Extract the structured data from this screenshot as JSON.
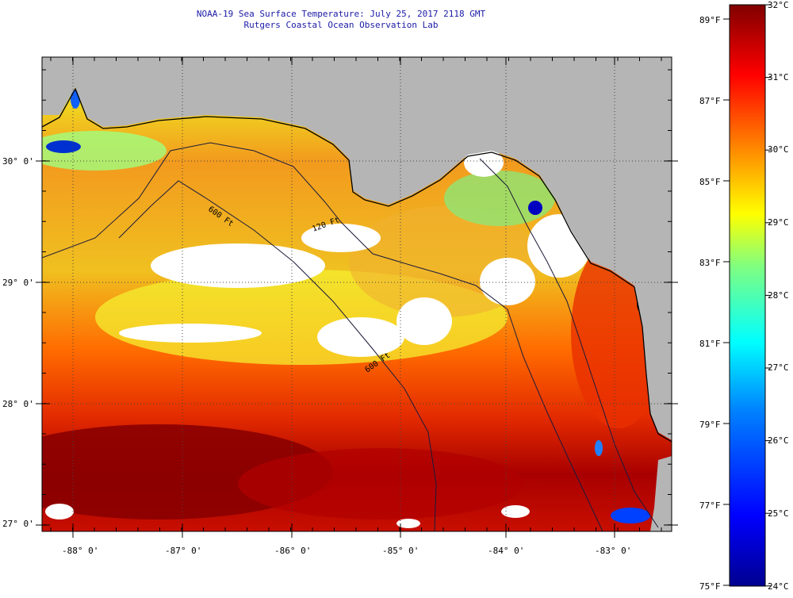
{
  "header": {
    "title": "NOAA-19 Sea Surface Temperature:  July 25, 2017 2118 GMT",
    "subtitle": "Rutgers Coastal Ocean Observation Lab"
  },
  "map": {
    "lat_labels": [
      "30° 0'",
      "29° 0'",
      "28° 0'",
      "27° 0'"
    ],
    "lon_labels": [
      "-88° 0'",
      "-87° 0'",
      "-86° 0'",
      "-85° 0'",
      "-84° 0'",
      "-83° 0'"
    ],
    "contours": [
      "120 Ft",
      "600 Ft"
    ],
    "colors": {
      "land": "#b5b5b5",
      "clouds": "#ffffff",
      "coastline": "#000000"
    }
  },
  "colorbar": {
    "fahrenheit_labels": [
      "89°F",
      "87°F",
      "85°F",
      "83°F",
      "81°F",
      "79°F",
      "77°F",
      "75°F"
    ],
    "celsius_labels": [
      "32°C",
      "31°C",
      "30°C",
      "29°C",
      "28°C",
      "27°C",
      "26°C",
      "25°C",
      "24°C"
    ],
    "colors": [
      "#00008f",
      "#0000ff",
      "#0080ff",
      "#00ffff",
      "#80ff80",
      "#ffff00",
      "#ff8000",
      "#ff0000",
      "#800000"
    ]
  }
}
